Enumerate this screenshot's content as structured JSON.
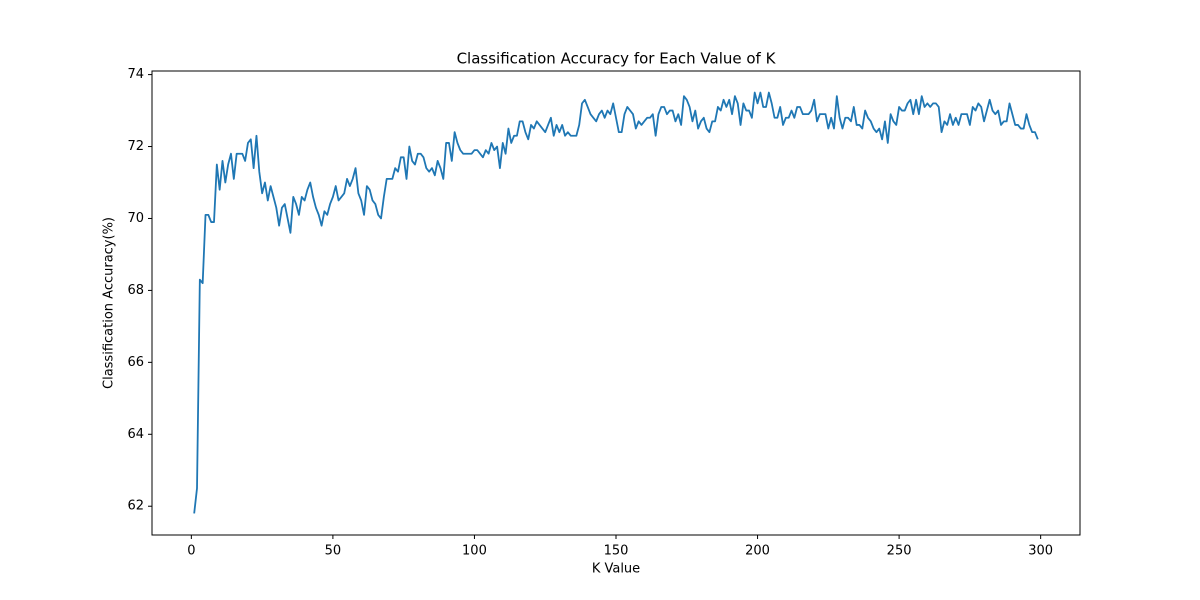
{
  "chart_data": {
    "type": "line",
    "title": "Classification Accuracy for Each Value of K",
    "x_label": "K Value",
    "y_label": "Classification Accuracy(%)",
    "color": "#1f77b4",
    "xlim": [
      -13.9,
      313.9
    ],
    "ylim": [
      61.2,
      74.1
    ],
    "xticks": [
      0,
      50,
      100,
      150,
      200,
      250,
      300
    ],
    "yticks": [
      62,
      64,
      66,
      68,
      70,
      72,
      74
    ],
    "x": [
      1,
      2,
      3,
      4,
      5,
      6,
      7,
      8,
      9,
      10,
      11,
      12,
      13,
      14,
      15,
      16,
      17,
      18,
      19,
      20,
      21,
      22,
      23,
      24,
      25,
      26,
      27,
      28,
      29,
      30,
      31,
      32,
      33,
      34,
      35,
      36,
      37,
      38,
      39,
      40,
      41,
      42,
      43,
      44,
      45,
      46,
      47,
      48,
      49,
      50,
      51,
      52,
      53,
      54,
      55,
      56,
      57,
      58,
      59,
      60,
      61,
      62,
      63,
      64,
      65,
      66,
      67,
      68,
      69,
      70,
      71,
      72,
      73,
      74,
      75,
      76,
      77,
      78,
      79,
      80,
      81,
      82,
      83,
      84,
      85,
      86,
      87,
      88,
      89,
      90,
      91,
      92,
      93,
      94,
      95,
      96,
      97,
      98,
      99,
      100,
      101,
      102,
      103,
      104,
      105,
      106,
      107,
      108,
      109,
      110,
      111,
      112,
      113,
      114,
      115,
      116,
      117,
      118,
      119,
      120,
      121,
      122,
      123,
      124,
      125,
      126,
      127,
      128,
      129,
      130,
      131,
      132,
      133,
      134,
      135,
      136,
      137,
      138,
      139,
      140,
      141,
      142,
      143,
      144,
      145,
      146,
      147,
      148,
      149,
      150,
      151,
      152,
      153,
      154,
      155,
      156,
      157,
      158,
      159,
      160,
      161,
      162,
      163,
      164,
      165,
      166,
      167,
      168,
      169,
      170,
      171,
      172,
      173,
      174,
      175,
      176,
      177,
      178,
      179,
      180,
      181,
      182,
      183,
      184,
      185,
      186,
      187,
      188,
      189,
      190,
      191,
      192,
      193,
      194,
      195,
      196,
      197,
      198,
      199,
      200,
      201,
      202,
      203,
      204,
      205,
      206,
      207,
      208,
      209,
      210,
      211,
      212,
      213,
      214,
      215,
      216,
      217,
      218,
      219,
      220,
      221,
      222,
      223,
      224,
      225,
      226,
      227,
      228,
      229,
      230,
      231,
      232,
      233,
      234,
      235,
      236,
      237,
      238,
      239,
      240,
      241,
      242,
      243,
      244,
      245,
      246,
      247,
      248,
      249,
      250,
      251,
      252,
      253,
      254,
      255,
      256,
      257,
      258,
      259,
      260,
      261,
      262,
      263,
      264,
      265,
      266,
      267,
      268,
      269,
      270,
      271,
      272,
      273,
      274,
      275,
      276,
      277,
      278,
      279,
      280,
      281,
      282,
      283,
      284,
      285,
      286,
      287,
      288,
      289,
      290,
      291,
      292,
      293,
      294,
      295,
      296,
      297,
      298,
      299
    ],
    "values": [
      61.8,
      62.5,
      68.3,
      68.2,
      70.1,
      70.1,
      69.9,
      69.9,
      71.5,
      70.8,
      71.6,
      71.0,
      71.5,
      71.8,
      71.1,
      71.8,
      71.8,
      71.8,
      71.6,
      72.1,
      72.2,
      71.4,
      72.3,
      71.3,
      70.7,
      71.0,
      70.5,
      70.9,
      70.6,
      70.3,
      69.8,
      70.3,
      70.4,
      70.0,
      69.6,
      70.6,
      70.4,
      70.1,
      70.6,
      70.5,
      70.8,
      71.0,
      70.6,
      70.3,
      70.1,
      69.8,
      70.2,
      70.1,
      70.4,
      70.6,
      70.9,
      70.5,
      70.6,
      70.7,
      71.1,
      70.9,
      71.1,
      71.4,
      70.7,
      70.5,
      70.1,
      70.9,
      70.8,
      70.5,
      70.4,
      70.1,
      70.0,
      70.6,
      71.1,
      71.1,
      71.1,
      71.4,
      71.3,
      71.7,
      71.7,
      71.1,
      72.0,
      71.6,
      71.5,
      71.8,
      71.8,
      71.7,
      71.4,
      71.3,
      71.4,
      71.2,
      71.6,
      71.4,
      71.1,
      72.1,
      72.1,
      71.6,
      72.4,
      72.1,
      71.9,
      71.8,
      71.8,
      71.8,
      71.8,
      71.9,
      71.9,
      71.8,
      71.7,
      71.9,
      71.8,
      72.1,
      71.9,
      72.0,
      71.4,
      72.1,
      71.8,
      72.5,
      72.1,
      72.3,
      72.3,
      72.7,
      72.7,
      72.4,
      72.2,
      72.6,
      72.5,
      72.7,
      72.6,
      72.5,
      72.4,
      72.6,
      72.8,
      72.3,
      72.6,
      72.4,
      72.6,
      72.3,
      72.4,
      72.3,
      72.3,
      72.3,
      72.6,
      73.2,
      73.3,
      73.1,
      72.9,
      72.8,
      72.7,
      72.9,
      73.0,
      72.8,
      73.0,
      72.9,
      73.2,
      72.8,
      72.4,
      72.4,
      72.9,
      73.1,
      73.0,
      72.9,
      72.5,
      72.7,
      72.6,
      72.7,
      72.8,
      72.8,
      72.9,
      72.3,
      72.9,
      73.1,
      73.1,
      72.9,
      73.0,
      73.0,
      72.7,
      72.9,
      72.6,
      73.4,
      73.3,
      73.1,
      72.7,
      73.0,
      72.5,
      72.7,
      72.8,
      72.5,
      72.4,
      72.7,
      72.7,
      73.1,
      73.0,
      73.3,
      73.1,
      73.3,
      72.9,
      73.4,
      73.2,
      72.6,
      73.2,
      73.0,
      73.0,
      72.8,
      73.5,
      73.2,
      73.5,
      73.1,
      73.1,
      73.5,
      73.2,
      72.8,
      72.8,
      73.1,
      72.6,
      72.8,
      72.8,
      73.0,
      72.8,
      73.1,
      73.1,
      72.9,
      72.9,
      72.9,
      73.0,
      73.3,
      72.7,
      72.9,
      72.9,
      72.9,
      72.5,
      72.8,
      72.5,
      73.4,
      72.8,
      72.5,
      72.8,
      72.8,
      72.7,
      73.1,
      72.6,
      72.6,
      72.5,
      73.0,
      72.8,
      72.7,
      72.5,
      72.4,
      72.5,
      72.2,
      72.7,
      72.1,
      72.9,
      72.7,
      72.6,
      73.1,
      73.0,
      73.0,
      73.2,
      73.3,
      72.9,
      73.3,
      72.9,
      73.4,
      73.1,
      73.2,
      73.1,
      73.2,
      73.2,
      73.1,
      72.4,
      72.7,
      72.6,
      72.9,
      72.6,
      72.8,
      72.6,
      72.9,
      72.9,
      72.9,
      72.6,
      73.1,
      73.0,
      73.2,
      73.1,
      72.7,
      73.0,
      73.3,
      73.0,
      72.9,
      73.0,
      72.6,
      72.7,
      72.7,
      73.2,
      72.9,
      72.6,
      72.6,
      72.5,
      72.5,
      72.9,
      72.6,
      72.4,
      72.4,
      72.2
    ]
  }
}
